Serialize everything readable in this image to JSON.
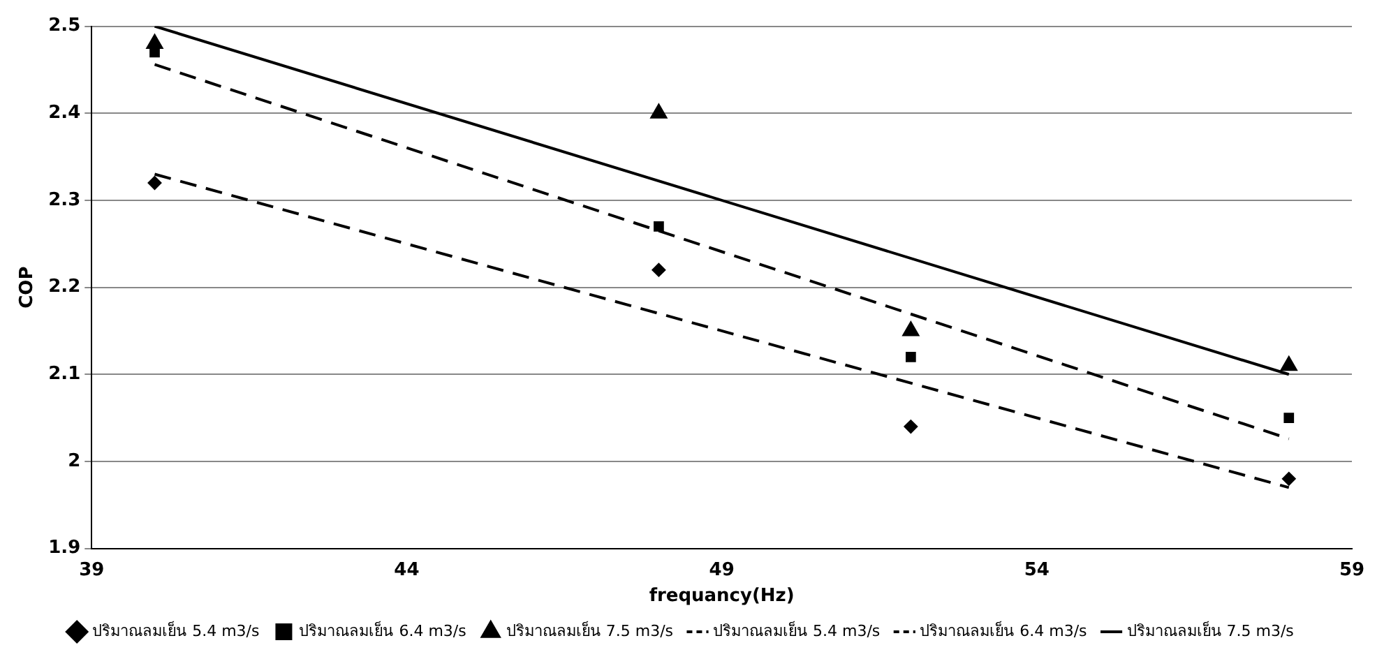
{
  "chart_data": {
    "type": "scatter",
    "xlabel": "frequancy(Hz)",
    "ylabel": "COP",
    "xlim": [
      39,
      59
    ],
    "xticks": [
      39,
      44,
      49,
      54,
      59
    ],
    "ylim": [
      1.9,
      2.5
    ],
    "yticks": [
      1.9,
      2,
      2.1,
      2.2,
      2.3,
      2.4,
      2.5
    ],
    "grid": "y",
    "legend": "bottom",
    "series": [
      {
        "name": "ปริมาณลมเย็น 5.4 m3/s",
        "marker": "diamond",
        "color": "#000000",
        "x": [
          40,
          48,
          52,
          58
        ],
        "values": [
          2.32,
          2.22,
          2.04,
          1.98
        ]
      },
      {
        "name": "ปริมาณลมเย็น 6.4 m3/s",
        "marker": "square",
        "color": "#000000",
        "x": [
          40,
          48,
          52,
          58
        ],
        "values": [
          2.47,
          2.27,
          2.12,
          2.05
        ]
      },
      {
        "name": "ปริมาณลมเย็น 7.5 m3/s",
        "marker": "triangle",
        "color": "#000000",
        "x": [
          40,
          48,
          52,
          58
        ],
        "values": [
          2.48,
          2.4,
          2.15,
          2.11
        ]
      },
      {
        "name": "ปริมาณลมเย็น 5.4 m3/s",
        "type": "line",
        "marker": "none",
        "line_style": "dashed",
        "color": "#000000",
        "x": [
          40,
          58
        ],
        "values": [
          2.33,
          1.97
        ]
      },
      {
        "name": "ปริมาณลมเย็น 6.4 m3/s",
        "type": "line",
        "marker": "none",
        "line_style": "dashed",
        "color": "#000000",
        "x": [
          40,
          58
        ],
        "values": [
          2.456,
          2.026
        ]
      },
      {
        "name": "ปริมาณลมเย็น 7.5 m3/s",
        "type": "line",
        "marker": "none",
        "line_style": "solid",
        "color": "#000000",
        "x": [
          40,
          58
        ],
        "values": [
          2.5,
          2.1
        ]
      }
    ]
  }
}
